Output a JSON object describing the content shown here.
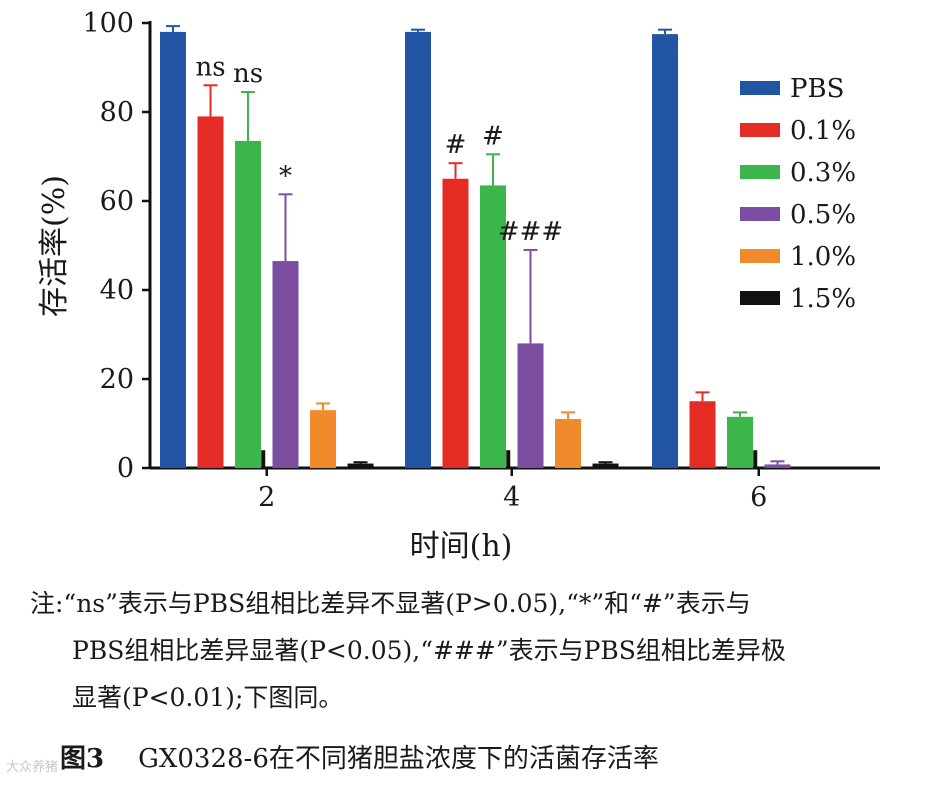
{
  "chart_data": {
    "type": "bar",
    "xlabel": "时间(h)",
    "ylabel": "存活率(%)",
    "ylim": [
      0,
      100
    ],
    "yticks": [
      0,
      20,
      40,
      60,
      80,
      100
    ],
    "categories": [
      "2",
      "4",
      "6"
    ],
    "legend_position": "top-right",
    "grid": false,
    "series": [
      {
        "name": "PBS",
        "color": "#2255a4",
        "values": [
          98,
          98,
          97.5
        ],
        "errors": [
          1.3,
          0.5,
          1.0
        ],
        "annotations": [
          "",
          "",
          ""
        ]
      },
      {
        "name": "0.1%",
        "color": "#e42b24",
        "values": [
          79,
          65,
          15
        ],
        "errors": [
          7,
          3.5,
          2
        ],
        "annotations": [
          "ns",
          "#",
          ""
        ]
      },
      {
        "name": "0.3%",
        "color": "#3cb54a",
        "values": [
          73.5,
          63.5,
          11.5
        ],
        "errors": [
          11,
          7,
          1
        ],
        "annotations": [
          "ns",
          "#",
          ""
        ]
      },
      {
        "name": "0.5%",
        "color": "#7b4ea1",
        "values": [
          46.5,
          28,
          0.8
        ],
        "errors": [
          15,
          21,
          0.7
        ],
        "annotations": [
          "*",
          "###",
          ""
        ]
      },
      {
        "name": "1.0%",
        "color": "#f08a2c",
        "values": [
          13,
          11,
          0
        ],
        "errors": [
          1.5,
          1.5,
          0
        ],
        "annotations": [
          "",
          "",
          ""
        ]
      },
      {
        "name": "1.5%",
        "color": "#111111",
        "values": [
          1,
          1,
          0
        ],
        "errors": [
          0.3,
          0.3,
          0
        ],
        "annotations": [
          "",
          "",
          ""
        ]
      }
    ],
    "zero_markers": [
      4,
      4,
      4
    ]
  },
  "note": {
    "lines": [
      "注:“ns”表示与PBS组相比差异不显著(P>0.05),“*”和“#”表示与",
      "PBS组相比差异显著(P<0.05),“###”表示与PBS组相比差异极",
      "显著(P<0.01);下图同。"
    ]
  },
  "caption": {
    "figure": "图3",
    "text": "GX0328-6在不同猪胆盐浓度下的活菌存活率"
  },
  "watermark": "大众养猪"
}
